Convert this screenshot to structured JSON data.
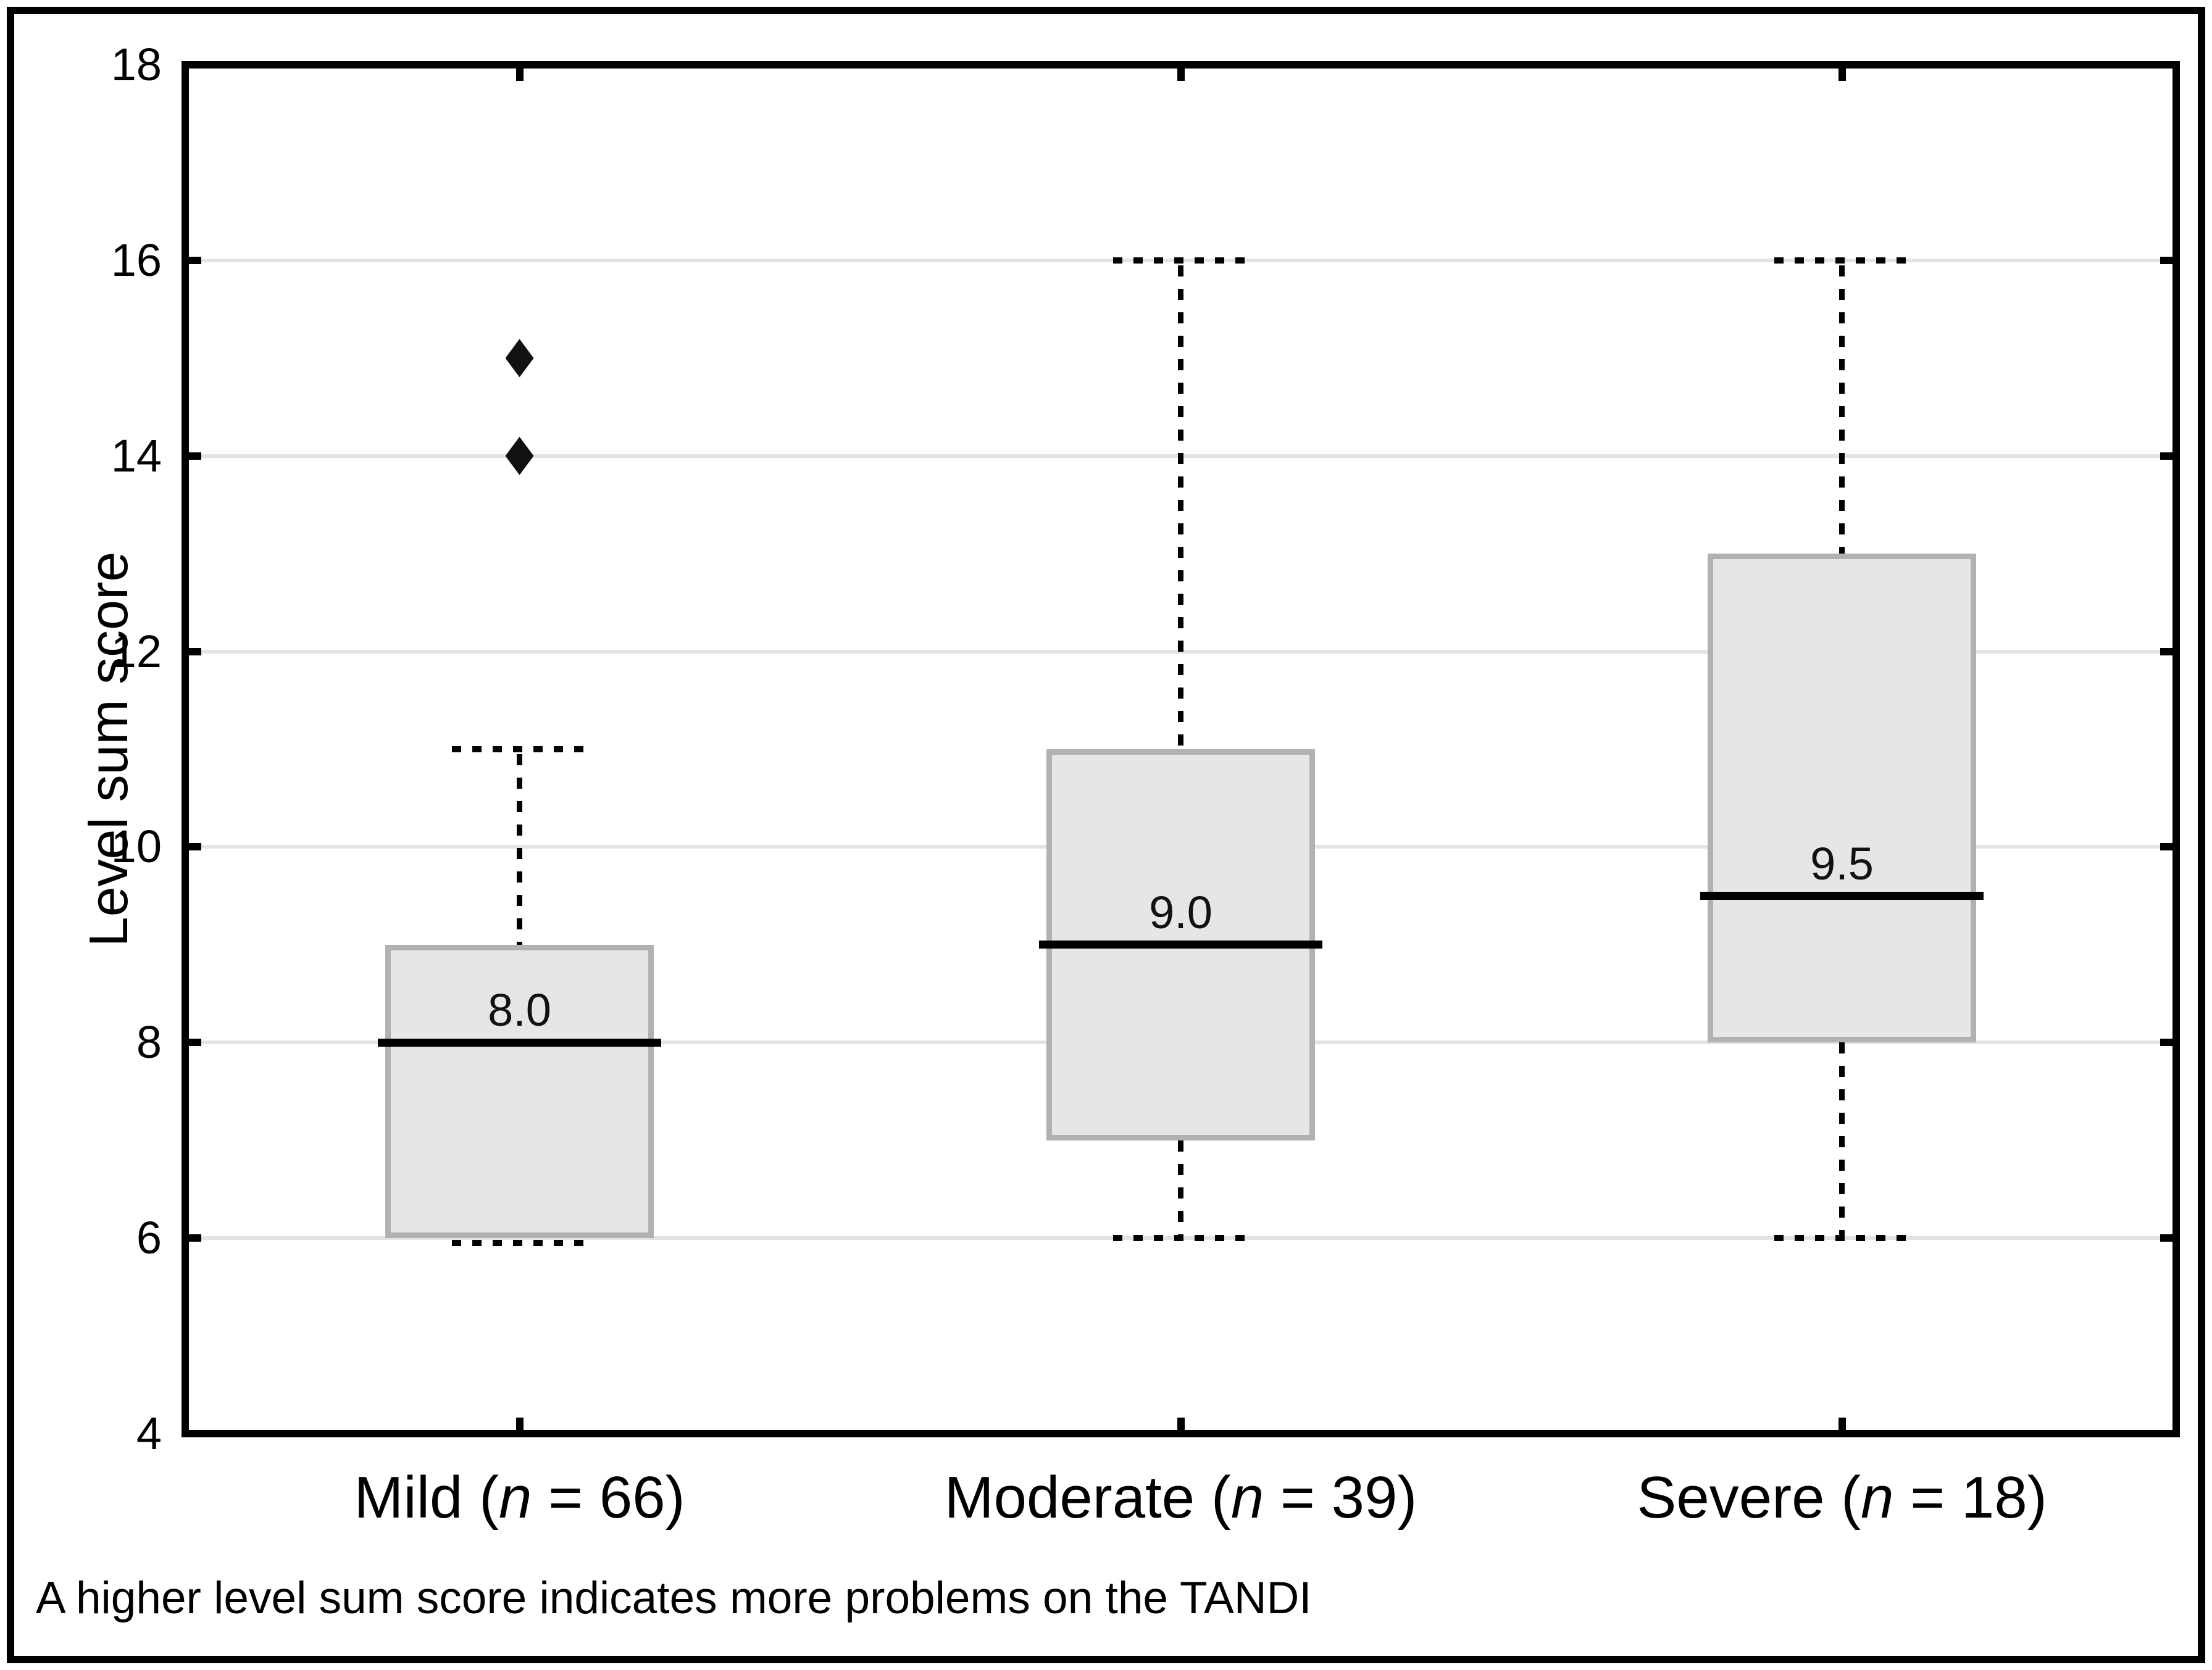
{
  "figure": {
    "caption": "A higher level sum score indicates more problems on the TANDI"
  },
  "chart_data": {
    "type": "box",
    "title": "",
    "xlabel": "",
    "ylabel": "Level sum score",
    "ylim": [
      4,
      18
    ],
    "yticks": [
      4,
      6,
      8,
      10,
      12,
      14,
      16,
      18
    ],
    "grid": "horizontal gridlines at ticks 6-16, light gray",
    "legend": "none",
    "colors": {
      "box_fill": "#e6e6e6",
      "box_border": "#b1b1b1",
      "gridline": "#e3e3e3",
      "axis": "#000000",
      "median": "#000000",
      "outlier": "#111111"
    },
    "categories": [
      {
        "name": "Mild",
        "n_symbol": "n",
        "n_value": "66",
        "q1": 6,
        "median": 8,
        "q3": 9,
        "whisker_low": 6,
        "whisker_high": 11,
        "median_label": "8.0",
        "outliers": [
          14,
          15
        ]
      },
      {
        "name": "Moderate",
        "n_symbol": "n",
        "n_value": "39",
        "q1": 7,
        "median": 9,
        "q3": 11,
        "whisker_low": 6,
        "whisker_high": 16,
        "median_label": "9.0",
        "outliers": []
      },
      {
        "name": "Severe",
        "n_symbol": "n",
        "n_value": "18",
        "q1": 8,
        "median": 9.5,
        "q3": 13,
        "whisker_low": 6,
        "whisker_high": 16,
        "median_label": "9.5",
        "outliers": []
      }
    ]
  }
}
